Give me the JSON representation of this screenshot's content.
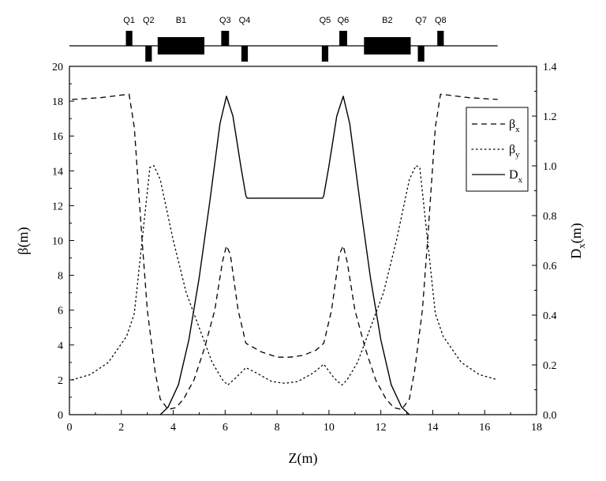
{
  "chart_data": {
    "type": "line",
    "xlabel": "Z(m)",
    "ylabel_left": "β(m)",
    "ylabel_right": "D_x(m)",
    "xlim": [
      0,
      18
    ],
    "ylim_left": [
      0,
      20
    ],
    "ylim_right": [
      0,
      1.4
    ],
    "x_ticks": [
      0,
      2,
      4,
      6,
      8,
      10,
      12,
      14,
      16,
      18
    ],
    "y_ticks_left": [
      0,
      2,
      4,
      6,
      8,
      10,
      12,
      14,
      16,
      18,
      20
    ],
    "y_ticks_right": [
      "0.0",
      "0.2",
      "0.4",
      "0.6",
      "0.8",
      "1.0",
      "1.2",
      "1.4"
    ],
    "grid": false,
    "legend_position": "top-right",
    "series": [
      {
        "name": "β_x",
        "name_main": "β",
        "name_sub": "x",
        "axis": "left",
        "style": "dashed",
        "points": [
          [
            0.1,
            18.1
          ],
          [
            1.2,
            18.2
          ],
          [
            2.0,
            18.35
          ],
          [
            2.3,
            18.4
          ],
          [
            2.5,
            16.5
          ],
          [
            2.8,
            10.0
          ],
          [
            3.0,
            6.0
          ],
          [
            3.3,
            2.5
          ],
          [
            3.5,
            0.9
          ],
          [
            3.8,
            0.3
          ],
          [
            4.1,
            0.4
          ],
          [
            4.4,
            0.9
          ],
          [
            4.8,
            2.0
          ],
          [
            5.2,
            3.8
          ],
          [
            5.6,
            6.0
          ],
          [
            5.9,
            8.8
          ],
          [
            6.05,
            9.7
          ],
          [
            6.2,
            9.2
          ],
          [
            6.5,
            6.0
          ],
          [
            6.8,
            4.1
          ],
          [
            7.4,
            3.6
          ],
          [
            8.0,
            3.3
          ],
          [
            8.5,
            3.3
          ],
          [
            9.0,
            3.4
          ],
          [
            9.5,
            3.7
          ],
          [
            9.8,
            4.1
          ],
          [
            10.1,
            6.0
          ],
          [
            10.4,
            9.2
          ],
          [
            10.55,
            9.7
          ],
          [
            10.7,
            8.8
          ],
          [
            11.0,
            6.0
          ],
          [
            11.4,
            3.8
          ],
          [
            11.8,
            2.0
          ],
          [
            12.2,
            0.9
          ],
          [
            12.5,
            0.4
          ],
          [
            12.8,
            0.3
          ],
          [
            13.1,
            0.9
          ],
          [
            13.3,
            2.5
          ],
          [
            13.6,
            6.0
          ],
          [
            13.8,
            10.0
          ],
          [
            14.1,
            16.5
          ],
          [
            14.3,
            18.4
          ],
          [
            14.6,
            18.35
          ],
          [
            15.4,
            18.2
          ],
          [
            16.5,
            18.1
          ]
        ]
      },
      {
        "name": "β_y",
        "name_main": "β",
        "name_sub": "y",
        "axis": "left",
        "style": "dotted",
        "points": [
          [
            0.1,
            2.0
          ],
          [
            0.8,
            2.3
          ],
          [
            1.5,
            3.0
          ],
          [
            2.2,
            4.5
          ],
          [
            2.5,
            5.8
          ],
          [
            2.8,
            10.0
          ],
          [
            3.1,
            14.2
          ],
          [
            3.25,
            14.3
          ],
          [
            3.5,
            13.5
          ],
          [
            4.0,
            10.0
          ],
          [
            4.5,
            7.0
          ],
          [
            5.0,
            5.0
          ],
          [
            5.5,
            3.0
          ],
          [
            5.9,
            2.0
          ],
          [
            6.1,
            1.7
          ],
          [
            6.4,
            2.1
          ],
          [
            6.8,
            2.7
          ],
          [
            7.2,
            2.4
          ],
          [
            7.8,
            1.9
          ],
          [
            8.3,
            1.8
          ],
          [
            8.8,
            1.9
          ],
          [
            9.4,
            2.4
          ],
          [
            9.8,
            2.9
          ],
          [
            10.2,
            2.1
          ],
          [
            10.5,
            1.7
          ],
          [
            10.7,
            2.0
          ],
          [
            11.1,
            3.0
          ],
          [
            11.6,
            5.0
          ],
          [
            12.1,
            7.0
          ],
          [
            12.6,
            10.0
          ],
          [
            13.1,
            13.5
          ],
          [
            13.35,
            14.3
          ],
          [
            13.5,
            14.2
          ],
          [
            13.8,
            10.0
          ],
          [
            14.1,
            5.8
          ],
          [
            14.4,
            4.5
          ],
          [
            15.1,
            3.0
          ],
          [
            15.8,
            2.3
          ],
          [
            16.5,
            2.0
          ]
        ]
      },
      {
        "name": "D_x",
        "name_main": "D",
        "name_sub": "x",
        "axis": "right",
        "style": "solid",
        "points": [
          [
            3.5,
            0.0
          ],
          [
            3.8,
            0.03
          ],
          [
            4.2,
            0.12
          ],
          [
            4.6,
            0.3
          ],
          [
            5.0,
            0.55
          ],
          [
            5.4,
            0.85
          ],
          [
            5.8,
            1.17
          ],
          [
            6.05,
            1.28
          ],
          [
            6.3,
            1.2
          ],
          [
            6.6,
            1.0
          ],
          [
            6.8,
            0.88
          ],
          [
            6.85,
            0.87
          ],
          [
            9.75,
            0.87
          ],
          [
            9.8,
            0.88
          ],
          [
            10.0,
            1.0
          ],
          [
            10.3,
            1.2
          ],
          [
            10.55,
            1.28
          ],
          [
            10.8,
            1.17
          ],
          [
            11.2,
            0.85
          ],
          [
            11.6,
            0.55
          ],
          [
            12.0,
            0.3
          ],
          [
            12.4,
            0.12
          ],
          [
            12.8,
            0.03
          ],
          [
            13.1,
            0.0
          ]
        ]
      }
    ]
  },
  "lattice": {
    "elements": [
      {
        "label": "Q1",
        "type": "quad",
        "pos": 2.3,
        "len": 0.25,
        "side": "up"
      },
      {
        "label": "Q2",
        "type": "quad",
        "pos": 3.05,
        "len": 0.25,
        "side": "down"
      },
      {
        "label": "B1",
        "type": "dipole",
        "pos": 4.3,
        "len": 1.8,
        "side": "center"
      },
      {
        "label": "Q3",
        "type": "quad",
        "pos": 6.0,
        "len": 0.3,
        "side": "up"
      },
      {
        "label": "Q4",
        "type": "quad",
        "pos": 6.75,
        "len": 0.25,
        "side": "down"
      },
      {
        "label": "Q5",
        "type": "quad",
        "pos": 9.85,
        "len": 0.25,
        "side": "down"
      },
      {
        "label": "Q6",
        "type": "quad",
        "pos": 10.55,
        "len": 0.3,
        "side": "up"
      },
      {
        "label": "B2",
        "type": "dipole",
        "pos": 12.25,
        "len": 1.8,
        "side": "center"
      },
      {
        "label": "Q7",
        "type": "quad",
        "pos": 13.55,
        "len": 0.25,
        "side": "down"
      },
      {
        "label": "Q8",
        "type": "quad",
        "pos": 14.3,
        "len": 0.25,
        "side": "up"
      }
    ]
  }
}
